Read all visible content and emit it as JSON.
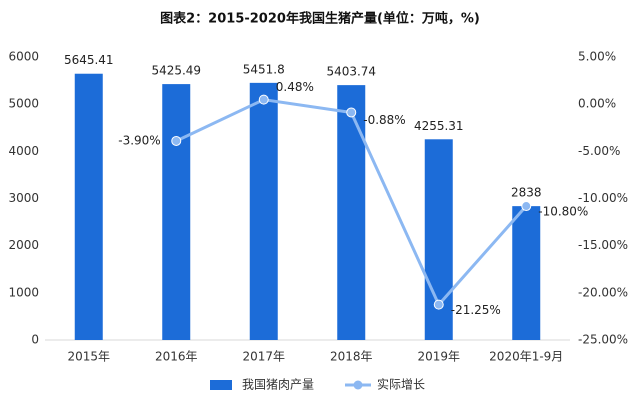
{
  "chart_data": {
    "type": "bar_line",
    "title": "图表2：2015-2020年我国生猪产量(单位：万吨，%)",
    "categories": [
      "2015年",
      "2016年",
      "2017年",
      "2018年",
      "2019年",
      "2020年1-9月"
    ],
    "series": [
      {
        "name": "我国猪肉产量",
        "type": "bar",
        "color": "#1c6cd8",
        "axis": "y",
        "values": [
          5645.41,
          5425.49,
          5451.8,
          5403.74,
          4255.31,
          2838
        ]
      },
      {
        "name": "实际增长",
        "type": "line",
        "color": "#8cb8f2",
        "axis": "y2",
        "values": [
          null,
          -3.9,
          0.48,
          -0.88,
          -21.25,
          -10.8
        ],
        "value_labels": [
          null,
          "-3.90%",
          "0.48%",
          "-0.88%",
          "-21.25%",
          "-10.80%"
        ]
      }
    ],
    "ylim": [
      0,
      6000
    ],
    "yticks": [
      0,
      1000,
      2000,
      3000,
      4000,
      5000,
      6000
    ],
    "y2lim": [
      -25,
      5
    ],
    "y2ticks": [
      {
        "value": 5,
        "label": "5.00%"
      },
      {
        "value": 0,
        "label": "0.00%"
      },
      {
        "value": -5,
        "label": "-5.00%"
      },
      {
        "value": -10,
        "label": "-10.00%"
      },
      {
        "value": -15,
        "label": "-15.00%"
      },
      {
        "value": -20,
        "label": "-20.00%"
      },
      {
        "value": -25,
        "label": "-25.00%"
      }
    ],
    "grid": false,
    "legend": "bottom"
  }
}
